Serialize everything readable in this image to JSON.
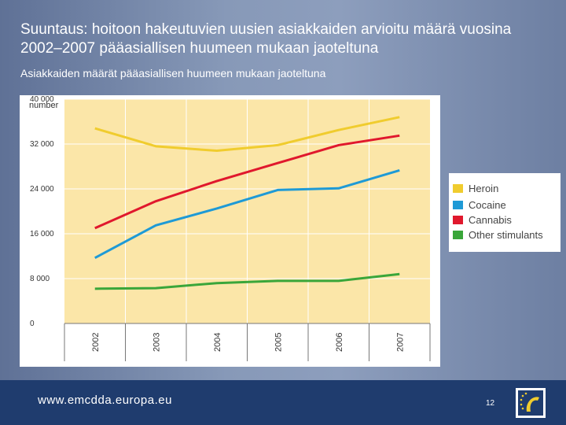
{
  "slide": {
    "title": "Suuntaus: hoitoon hakeutuvien uusien asiakkaiden arvioitu määrä vuosina 2002–2007 pääasiallisen huumeen mukaan jaoteltuna",
    "subtitle": "Asiakkaiden määrät pääasiallisen huumeen mukaan jaoteltuna",
    "footer_url": "www.emcdda.europa.eu",
    "page_number": "12"
  },
  "colors": {
    "plot_background": "#fbe6a8",
    "grid": "#ffffff",
    "heroin": "#f0cc2e",
    "cocaine": "#1e9ad6",
    "cannabis": "#e0182d",
    "other_stimulants": "#3aa63a"
  },
  "chart_data": {
    "type": "line",
    "ylabel": "number",
    "x": [
      "2002",
      "2003",
      "2004",
      "2005",
      "2006",
      "2007"
    ],
    "yticks": [
      "0",
      "8 000",
      "16 000",
      "24 000",
      "32 000",
      "40 000"
    ],
    "ylim": [
      0,
      40000
    ],
    "grid": true,
    "legend": "right",
    "series": [
      {
        "name": "Heroin",
        "color": "#f0cc2e",
        "values": [
          34800,
          31600,
          30800,
          31800,
          34500,
          36800
        ]
      },
      {
        "name": "Cocaine",
        "color": "#1e9ad6",
        "values": [
          11700,
          17500,
          20500,
          23800,
          24100,
          27300
        ]
      },
      {
        "name": "Cannabis",
        "color": "#e0182d",
        "values": [
          17000,
          21800,
          25400,
          28600,
          31800,
          33500
        ]
      },
      {
        "name": "Other stimulants",
        "color": "#3aa63a",
        "values": [
          6200,
          6300,
          7200,
          7600,
          7600,
          8800
        ]
      }
    ]
  },
  "legend_items": [
    {
      "label": "Heroin",
      "color": "#f0cc2e"
    },
    {
      "label": "Cocaine",
      "color": "#1e9ad6"
    },
    {
      "label": "Cannabis",
      "color": "#e0182d"
    },
    {
      "label": "Other stimulants",
      "color": "#3aa63a"
    }
  ]
}
